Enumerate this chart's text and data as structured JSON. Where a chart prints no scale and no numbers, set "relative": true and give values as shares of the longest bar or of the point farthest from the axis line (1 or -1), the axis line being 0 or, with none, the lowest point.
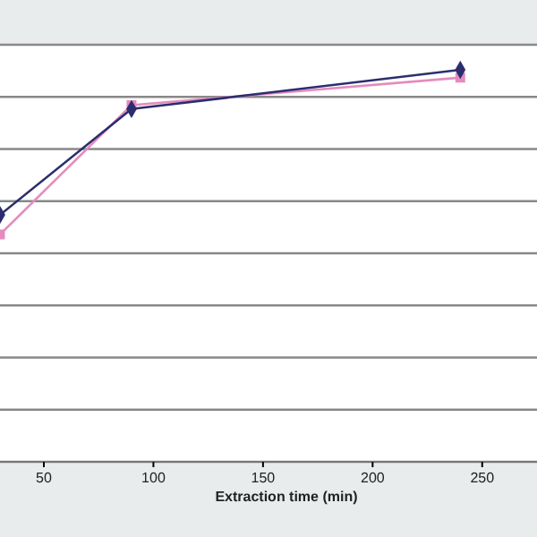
{
  "chart_data": {
    "type": "line",
    "xlabel": "Extraction time (min)",
    "relative": true,
    "xlim": [
      30,
      275
    ],
    "xticks": [
      50,
      100,
      150,
      200,
      250
    ],
    "grid": "y",
    "x": [
      30,
      90,
      240
    ],
    "series": [
      {
        "color": "#2b2d6e",
        "values": [
          0.63,
          0.9,
          1
        ],
        "marker": "diamond"
      },
      {
        "color": "#e58bbd",
        "values": [
          0.58,
          0.91,
          0.98
        ],
        "marker": "square"
      }
    ]
  }
}
